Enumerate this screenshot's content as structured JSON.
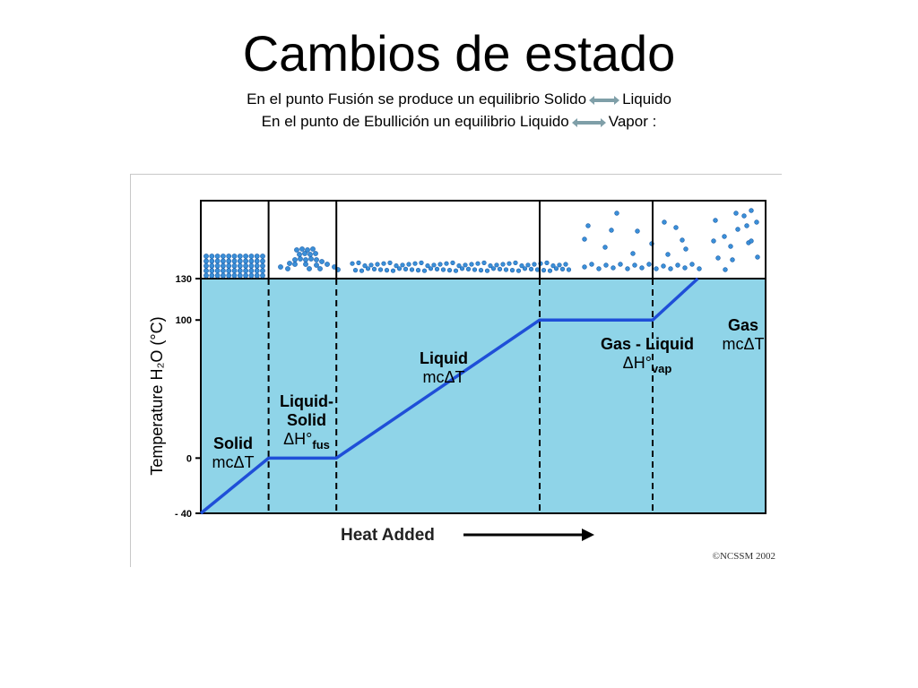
{
  "slide": {
    "title": "Cambios de estado",
    "line1": {
      "before": "En el punto Fusión se produce un equilibrio Solido",
      "after": "Liquido"
    },
    "line2": {
      "before": "En el punto de Ebullición un equilibrio Liquido",
      "after": "Vapor :"
    },
    "arrow_color": "#7f9fa8"
  },
  "chart_data": {
    "type": "line",
    "xlabel": "Heat Added",
    "ylabel": "Temperature H₂O (°C)",
    "copyright": "©NCSSM 2002",
    "yticks": [
      130,
      100,
      0,
      -40
    ],
    "ytick_labels": [
      "130",
      "100",
      "0",
      "- 40"
    ],
    "ylim": [
      -40,
      130
    ],
    "xlim": [
      0,
      10
    ],
    "series": [
      {
        "x": [
          0,
          1.2,
          2.4,
          6.0,
          8.0,
          8.8
        ],
        "y": [
          -40,
          0,
          0,
          100,
          100,
          130
        ]
      }
    ],
    "phase_boundaries": [
      1.2,
      2.4,
      6.0,
      8.0
    ],
    "regions": [
      {
        "line1": "Solid",
        "line2": "mcΔT",
        "sub": ""
      },
      {
        "line1": "Liquid-",
        "line2": "Solid",
        "line3": "ΔH°",
        "sub": "fus"
      },
      {
        "line1": "Liquid",
        "line2": "mcΔT",
        "sub": ""
      },
      {
        "line1": "Gas - Liquid",
        "line2": "ΔH°",
        "sub": "vap"
      },
      {
        "line1": "Gas",
        "line2": "mcΔT",
        "sub": ""
      }
    ],
    "colors": {
      "plot_bg": "#8fd4e8",
      "line": "#1f4fd8",
      "particle": "#3a8fd8"
    }
  }
}
